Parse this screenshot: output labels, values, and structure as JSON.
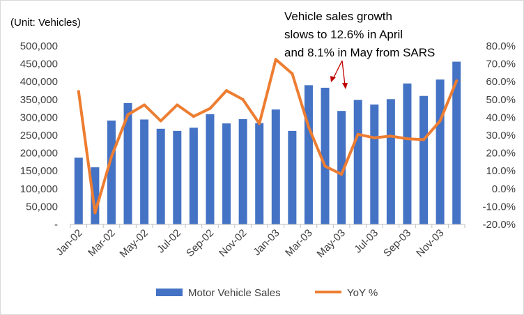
{
  "chart_data": {
    "type": "bar+line",
    "unit_label": "(Unit: Vehicles)",
    "annotation": {
      "lines": [
        "Vehicle sales growth",
        "slows to 12.6% in April",
        "and 8.1% in May from SARS"
      ]
    },
    "categories": [
      "Jan-02",
      "Feb-02",
      "Mar-02",
      "Apr-02",
      "May-02",
      "Jun-02",
      "Jul-02",
      "Aug-02",
      "Sep-02",
      "Oct-02",
      "Nov-02",
      "Dec-02",
      "Jan-03",
      "Feb-03",
      "Mar-03",
      "Apr-03",
      "May-03",
      "Jun-03",
      "Jul-03",
      "Aug-03",
      "Sep-03",
      "Oct-03",
      "Nov-03",
      "Dec-03"
    ],
    "x_tick_labels": [
      "Jan-02",
      "Mar-02",
      "May-02",
      "Jul-02",
      "Sep-02",
      "Nov-02",
      "Jan-03",
      "Mar-03",
      "May-03",
      "Jul-03",
      "Sep-03",
      "Nov-03"
    ],
    "series": [
      {
        "name": "Motor Vehicle Sales",
        "kind": "bar",
        "axis": "left",
        "color": "#4472c4",
        "values": [
          187000,
          160000,
          291000,
          340000,
          294000,
          268000,
          262000,
          271000,
          309000,
          283000,
          295000,
          284000,
          322000,
          262000,
          390000,
          383000,
          318000,
          349000,
          336000,
          351000,
          395000,
          360000,
          406000,
          456000
        ]
      },
      {
        "name": "YoY %",
        "kind": "line",
        "axis": "right",
        "color": "#ed7d31",
        "values": [
          54.5,
          -13.5,
          18,
          41.5,
          47,
          38,
          47,
          40.5,
          45,
          55,
          50,
          36.5,
          72.5,
          64.5,
          34.5,
          12.6,
          8.1,
          30.5,
          28.5,
          29.5,
          28,
          27.5,
          38,
          60.5
        ]
      }
    ],
    "y_left": {
      "min": 0,
      "max": 500000,
      "step": 50000,
      "tick_labels": [
        "-",
        "50,000",
        "100,000",
        "150,000",
        "200,000",
        "250,000",
        "300,000",
        "350,000",
        "400,000",
        "450,000",
        "500,000"
      ]
    },
    "y_right": {
      "min": -20,
      "max": 80,
      "step": 10,
      "tick_labels": [
        "-20.0%",
        "-10.0%",
        "0.0%",
        "10.0%",
        "20.0%",
        "30.0%",
        "40.0%",
        "50.0%",
        "60.0%",
        "70.0%",
        "80.0%"
      ]
    },
    "grid": false,
    "legend": "bottom"
  }
}
